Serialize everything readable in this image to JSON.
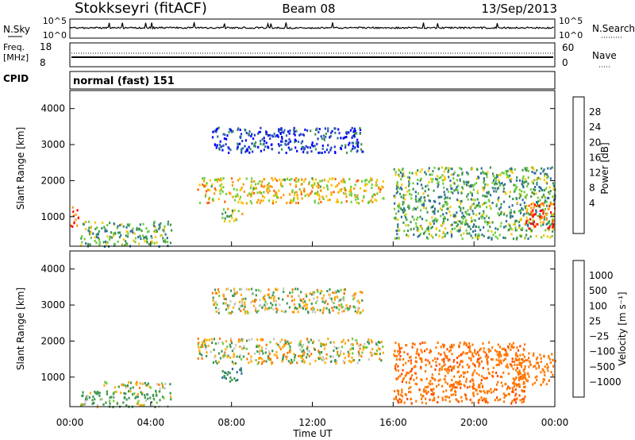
{
  "header": {
    "station": "Stokkseyri (fitACF)",
    "beam": "Beam 08",
    "date": "13/Sep/2013"
  },
  "noise_panel": {
    "left_label": "N.Sky",
    "right_label": "N.Search",
    "left_ticks": [
      "10^5",
      "10^0"
    ],
    "right_ticks": [
      "10^5",
      "10^0"
    ]
  },
  "freq_panel": {
    "left_label_1": "Freq.",
    "left_label_2": "[MHz]",
    "left_ticks": [
      "18",
      "8"
    ],
    "right_label": "Nave",
    "right_ticks": [
      "60",
      "0"
    ]
  },
  "cpid": {
    "label": "CPID",
    "text": "normal (fast) 151"
  },
  "x_axis": {
    "label": "Time UT",
    "ticks": [
      "00:00",
      "04:00",
      "08:00",
      "12:00",
      "16:00",
      "20:00",
      "00:00"
    ]
  },
  "y_axis": {
    "label": "Slant Range [km]",
    "ticks": [
      "4000",
      "3000",
      "2000",
      "1000"
    ]
  },
  "colorbars": {
    "power": {
      "label": "Power [dB]",
      "ticks": [
        "28",
        "24",
        "20",
        "16",
        "12",
        "8",
        "4"
      ],
      "colors": [
        "#ff0000",
        "#ff5a00",
        "#ff9600",
        "#f5c800",
        "#6ecd3c",
        "#3c9650",
        "#2d6e9b",
        "#1e3cc8",
        "#0000ff"
      ]
    },
    "velocity": {
      "label": "Velocity [m s⁻¹]",
      "ticks": [
        "1000",
        "500",
        "100",
        "25",
        "−25",
        "−100",
        "−500",
        "−1000"
      ],
      "colors": [
        "#1e3cc8",
        "#2d6e9b",
        "#3c9650",
        "#6ecd3c",
        "#c8c8c0",
        "#ffaa00",
        "#ff7800",
        "#ff4600",
        "#ff0000"
      ]
    }
  },
  "chart_data": [
    {
      "type": "heatmap",
      "title": "Power",
      "x_range": [
        "00:00",
        "24:00"
      ],
      "y_range_km": [
        180,
        4500
      ],
      "regions": [
        {
          "t_start_h": 0.0,
          "t_end_h": 0.4,
          "range_km": [
            700,
            1300
          ],
          "value_db": 26
        },
        {
          "t_start_h": 0.5,
          "t_end_h": 5.0,
          "range_km": [
            200,
            900
          ],
          "value_db": 14
        },
        {
          "t_start_h": 6.3,
          "t_end_h": 15.5,
          "range_km": [
            1400,
            2100
          ],
          "value_db": 20
        },
        {
          "t_start_h": 7.0,
          "t_end_h": 14.5,
          "range_km": [
            2800,
            3500
          ],
          "value_db": 6
        },
        {
          "t_start_h": 7.5,
          "t_end_h": 8.5,
          "range_km": [
            900,
            1300
          ],
          "value_db": 16
        },
        {
          "t_start_h": 16.0,
          "t_end_h": 24.0,
          "range_km": [
            400,
            2400
          ],
          "value_db": 14
        },
        {
          "t_start_h": 22.5,
          "t_end_h": 24.0,
          "range_km": [
            700,
            1400
          ],
          "value_db": 28
        }
      ]
    },
    {
      "type": "heatmap",
      "title": "Velocity",
      "x_range": [
        "00:00",
        "24:00"
      ],
      "y_range_km": [
        180,
        4500
      ],
      "regions": [
        {
          "t_start_h": 0.5,
          "t_end_h": 5.0,
          "range_km": [
            200,
            650
          ],
          "value_ms": 100
        },
        {
          "t_start_h": 1.5,
          "t_end_h": 5.0,
          "range_km": [
            700,
            900
          ],
          "value_ms": 0
        },
        {
          "t_start_h": 6.3,
          "t_end_h": 15.5,
          "range_km": [
            1400,
            2100
          ],
          "value_ms": 0
        },
        {
          "t_start_h": 7.0,
          "t_end_h": 14.5,
          "range_km": [
            2800,
            3500
          ],
          "value_ms": 0
        },
        {
          "t_start_h": 7.5,
          "t_end_h": 8.5,
          "range_km": [
            900,
            1300
          ],
          "value_ms": 300
        },
        {
          "t_start_h": 16.0,
          "t_end_h": 22.5,
          "range_km": [
            300,
            2000
          ],
          "value_ms": -400
        },
        {
          "t_start_h": 22.0,
          "t_end_h": 24.0,
          "range_km": [
            800,
            1700
          ],
          "value_ms": -300
        }
      ]
    }
  ]
}
